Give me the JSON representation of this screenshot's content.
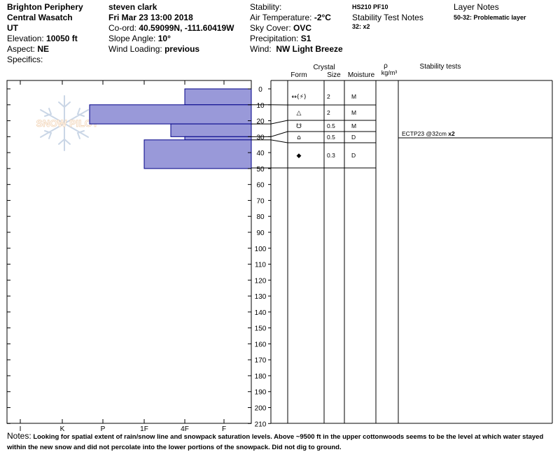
{
  "header": {
    "location": "Brighton Periphery",
    "range": "Central Wasatch",
    "state": "UT",
    "elevation_label": "Elevation:",
    "elevation_value": "10050 ft",
    "aspect_label": "Aspect:",
    "aspect_value": "NE",
    "specifics_label": "Specifics:",
    "observer": "steven clark",
    "datetime": "Fri Mar 23 13:00 2018",
    "coord_label": "Co-ord:",
    "coord_value": "40.59099N, -111.60419W",
    "slope_label": "Slope Angle:",
    "slope_value": "10°",
    "wind_loading_label": "Wind Loading:",
    "wind_loading_value": "previous",
    "stability_label": "Stability:",
    "air_temp_label": "Air Temperature:",
    "air_temp_value": "-2°C",
    "sky_label": "Sky Cover:",
    "sky_value": "OVC",
    "precip_label": "Precipitation:",
    "precip_value": "S1",
    "wind_label": "Wind:",
    "wind_value": "NW Light Breeze",
    "hs_pf": "HS210  PF10",
    "stability_notes_label": "Stability Test Notes",
    "stability_notes_value": "32: x2",
    "layer_notes_label": "Layer Notes",
    "layer_notes_value": "50-32: Problematic layer"
  },
  "columns": {
    "crystal": "Crystal",
    "form": "Form",
    "size": "Size",
    "moisture": "Moisture",
    "rho": "ρ",
    "density_unit": "kg/m³",
    "stability_tests": "Stability tests"
  },
  "hardness_axis": [
    "I",
    "K",
    "P",
    "1F",
    "4F",
    "F"
  ],
  "depth_axis": [
    "0",
    "10",
    "20",
    "30",
    "40",
    "50",
    "60",
    "70",
    "80",
    "90",
    "100",
    "110",
    "120",
    "130",
    "140",
    "150",
    "160",
    "170",
    "180",
    "190",
    "200",
    "210"
  ],
  "logo_text": "SNOW PILOT",
  "colors": {
    "bar_fill": "#9999d9",
    "bar_stroke": "#000088"
  },
  "chart_data": {
    "type": "bar",
    "orientation": "horizontal",
    "description_axis": "hardness by depth (cm)",
    "ylim": [
      0,
      210
    ],
    "hardness_scale": [
      "F",
      "4F",
      "1F",
      "P",
      "K",
      "I"
    ],
    "layers": [
      {
        "top": 0,
        "bottom": 10,
        "hardness": "4F"
      },
      {
        "top": 10,
        "bottom": 22,
        "hardness": "P+"
      },
      {
        "top": 22,
        "bottom": 30,
        "hardness": "1F-"
      },
      {
        "top": 30,
        "bottom": 32,
        "hardness": "4F"
      },
      {
        "top": 32,
        "bottom": 50,
        "hardness": "1F"
      }
    ]
  },
  "layer_rows": [
    {
      "form": "↔(⚡)",
      "size": "2",
      "moisture": "M"
    },
    {
      "form": "△",
      "size": "2",
      "moisture": "M"
    },
    {
      "form": "☋",
      "size": "0.5",
      "moisture": "M"
    },
    {
      "form": "⌂",
      "size": "0.5",
      "moisture": "D"
    },
    {
      "form": "◆",
      "size": "0.3",
      "moisture": "D"
    }
  ],
  "stability_test": {
    "text": "ECTP23 @32cm",
    "result": "x2"
  },
  "notes": {
    "label": "Notes:",
    "text": "Looking for spatial extent of rain/snow line and snowpack saturation levels. Above ~9500 ft in the upper cottonwoods seems to be the level at which water stayed within the new snow and did not percolate into the lower portions of the snowpack. Did not dig to ground."
  }
}
